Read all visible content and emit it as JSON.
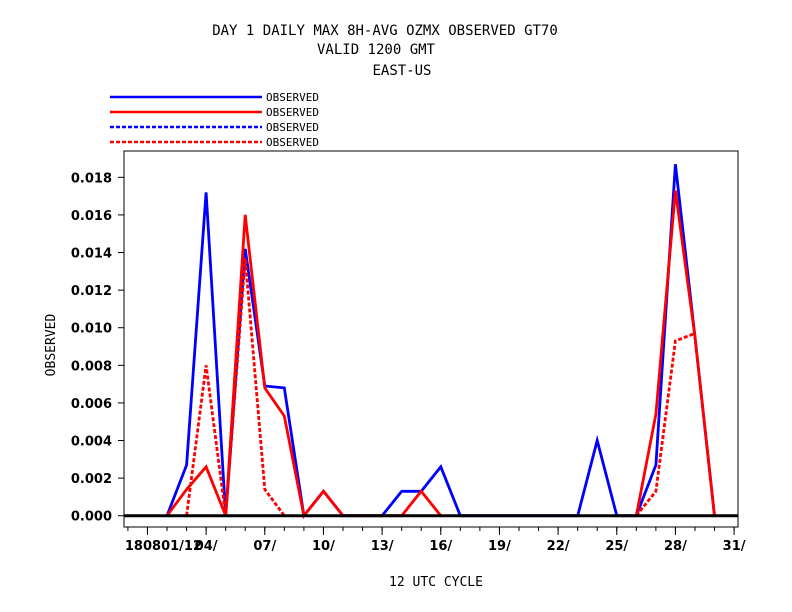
{
  "chart_data": {
    "type": "line",
    "title": [
      "DAY 1 DAILY MAX   8H-AVG OZMX OBSERVED GT70",
      "VALID 1200 GMT",
      "EAST-US"
    ],
    "xlabel": "12 UTC CYCLE",
    "ylabel": "OBSERVED",
    "x_tick_labels": [
      "18080​1/12",
      "04/",
      "07/",
      "10/",
      "13/",
      "16/",
      "19/",
      "22/",
      "25/",
      "28/",
      "31/"
    ],
    "x_tick_days": [
      1,
      4,
      7,
      10,
      13,
      16,
      19,
      22,
      25,
      28,
      31
    ],
    "xlim": [
      -0.2,
      31.2
    ],
    "ylim": [
      -0.0006,
      0.0194
    ],
    "y_ticks": [
      "0.000",
      "0.002",
      "0.004",
      "0.006",
      "0.008",
      "0.010",
      "0.012",
      "0.014",
      "0.016",
      "0.018"
    ],
    "y_tick_values": [
      0,
      0.002,
      0.004,
      0.006,
      0.008,
      0.01,
      0.012,
      0.014,
      0.016,
      0.018
    ],
    "x_days": [
      1,
      2,
      3,
      4,
      5,
      6,
      7,
      8,
      9,
      10,
      11,
      12,
      13,
      14,
      15,
      16,
      17,
      18,
      19,
      20,
      21,
      22,
      23,
      24,
      25,
      26,
      27,
      28,
      29,
      30
    ],
    "legend_placement": "top-left",
    "series": [
      {
        "name": "OBSERVED",
        "color": "#0000ff",
        "dash": "solid",
        "values": [
          null,
          0,
          0.0027,
          0.0172,
          0,
          0.0142,
          0.0069,
          0.0068,
          0,
          0.0013,
          0,
          0,
          0,
          0.0013,
          0.0013,
          0.0026,
          0,
          0,
          0,
          0,
          0,
          0,
          0,
          0.004,
          0,
          0,
          0.0027,
          0.0187,
          0.0095,
          0
        ]
      },
      {
        "name": "OBSERVED",
        "color": "#ff0000",
        "dash": "solid",
        "values": [
          null,
          0,
          0.0014,
          0.0026,
          0,
          0.016,
          0.0068,
          0.0053,
          0,
          0.0013,
          0,
          0,
          0,
          0,
          0.0013,
          0,
          null,
          null,
          null,
          null,
          null,
          null,
          null,
          null,
          null,
          0,
          0.0054,
          0.0173,
          0.0095,
          0
        ]
      },
      {
        "name": "OBSERVED",
        "color": "#0000ff",
        "dash": "dashed",
        "values": [
          null,
          null,
          null,
          null,
          null,
          null,
          null,
          null,
          null,
          null,
          null,
          null,
          null,
          null,
          null,
          null,
          null,
          null,
          null,
          null,
          null,
          null,
          null,
          null,
          null,
          null,
          null,
          null,
          null,
          null
        ]
      },
      {
        "name": "OBSERVED",
        "color": "#ff0000",
        "dash": "dashed",
        "values": [
          null,
          null,
          0,
          0.008,
          0,
          0.0137,
          0.0014,
          0,
          null,
          null,
          null,
          null,
          null,
          null,
          null,
          null,
          null,
          null,
          null,
          null,
          null,
          null,
          null,
          null,
          null,
          0,
          0.0013,
          0.0093,
          0.0097,
          null
        ]
      }
    ]
  }
}
